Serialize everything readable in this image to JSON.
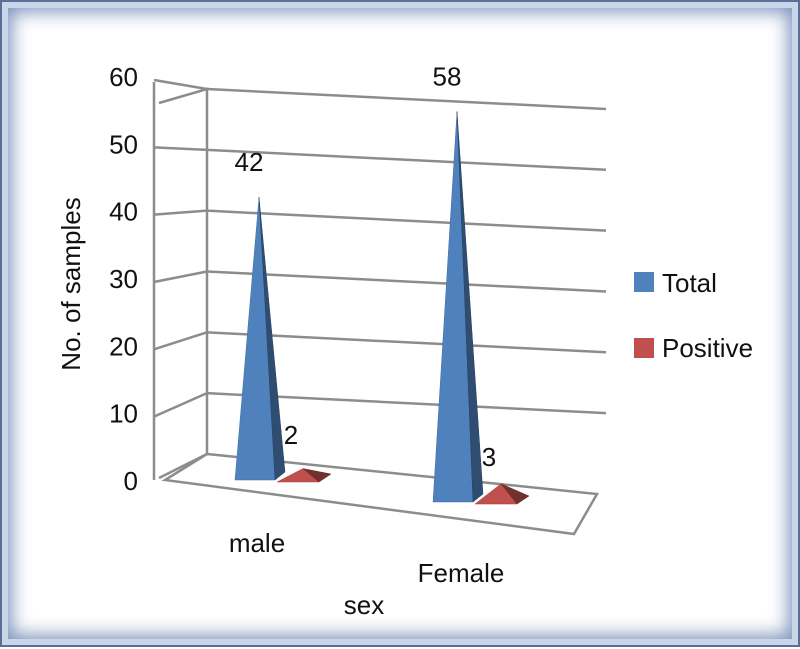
{
  "chart_data": {
    "type": "bar",
    "style": "3d-pyramid",
    "title": "",
    "xlabel": "sex",
    "ylabel": "No. of samples",
    "ylim": [
      0,
      60
    ],
    "yticks": [
      0,
      10,
      20,
      30,
      40,
      50,
      60
    ],
    "categories": [
      "male",
      "Female"
    ],
    "series": [
      {
        "name": "Total",
        "values": [
          42,
          58
        ],
        "color": "#4f81bd"
      },
      {
        "name": "Positive",
        "values": [
          2,
          3
        ],
        "color": "#c0504d"
      }
    ],
    "data_labels": true,
    "grid": true,
    "legend_position": "right"
  }
}
